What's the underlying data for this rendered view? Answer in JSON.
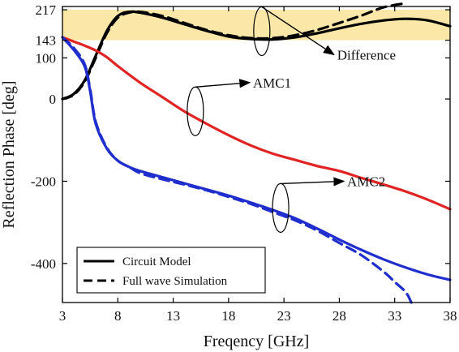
{
  "chart_data": {
    "type": "line",
    "xlabel": "Freqency [GHz]",
    "ylabel": "Reflection Phase [deg]",
    "xlim": [
      3,
      38
    ],
    "ylim": [
      -495,
      225
    ],
    "xticks": [
      3,
      8,
      13,
      18,
      23,
      28,
      33,
      38
    ],
    "xtick_labels": [
      "3",
      "8",
      "13",
      "18",
      "23",
      "28",
      "33",
      "38"
    ],
    "yticks": [
      217,
      143,
      100,
      0,
      -200,
      -400
    ],
    "ytick_labels": [
      "217",
      "143",
      "100",
      "0",
      "-200",
      "-400"
    ],
    "grid": false,
    "highlight_band": {
      "y_from": 143,
      "y_to": 217,
      "color": "#fbe7a8"
    },
    "legend": {
      "position": "bottom-left",
      "entries": [
        {
          "label": "Circuit Model",
          "style": "solid"
        },
        {
          "label": "Full wave Simulation",
          "style": "dashed"
        }
      ]
    },
    "annotations": [
      {
        "text": "Difference",
        "series": "Difference"
      },
      {
        "text": "AMC1",
        "series": "AMC1"
      },
      {
        "text": "AMC2",
        "series": "AMC2"
      }
    ],
    "series": [
      {
        "name": "Difference",
        "model": "circuit",
        "color": "#000000",
        "dash": false,
        "x": [
          3,
          4,
          5,
          6,
          7,
          8,
          9,
          10,
          12,
          14,
          16,
          18,
          20,
          22,
          24,
          26,
          28,
          30,
          32,
          34,
          36,
          38
        ],
        "y": [
          0,
          12,
          45,
          105,
          165,
          202,
          212,
          210,
          198,
          182,
          166,
          152,
          146,
          145,
          150,
          160,
          172,
          183,
          191,
          195,
          191,
          177
        ]
      },
      {
        "name": "Difference",
        "model": "full-wave",
        "color": "#000000",
        "dash": true,
        "x": [
          3,
          4,
          5,
          6,
          7,
          8,
          9,
          10,
          12,
          14,
          16,
          18,
          20,
          22,
          24,
          26,
          28,
          30,
          32,
          34
        ],
        "y": [
          0,
          10,
          42,
          100,
          160,
          198,
          210,
          212,
          202,
          185,
          168,
          155,
          148,
          148,
          155,
          168,
          185,
          203,
          223,
          240
        ]
      },
      {
        "name": "AMC1",
        "model": "circuit",
        "color": "#e02424",
        "dash": false,
        "x": [
          3,
          4,
          5,
          6,
          7,
          8,
          10,
          12,
          14,
          16,
          18,
          20,
          22,
          24,
          26,
          28,
          30,
          32,
          34,
          36,
          38
        ],
        "y": [
          150,
          140,
          130,
          118,
          102,
          80,
          40,
          5,
          -30,
          -60,
          -88,
          -113,
          -133,
          -148,
          -163,
          -175,
          -192,
          -208,
          -225,
          -245,
          -268
        ]
      },
      {
        "name": "AMC2",
        "model": "circuit",
        "color": "#1f2ecc",
        "dash": false,
        "x": [
          3,
          4,
          5,
          5.5,
          6,
          7,
          8,
          9,
          10,
          12,
          14,
          16,
          18,
          20,
          22,
          24,
          26,
          28,
          30,
          32,
          34,
          36,
          38
        ],
        "y": [
          150,
          120,
          80,
          20,
          -60,
          -120,
          -150,
          -165,
          -175,
          -190,
          -205,
          -220,
          -235,
          -252,
          -270,
          -290,
          -315,
          -342,
          -367,
          -390,
          -410,
          -427,
          -440
        ]
      },
      {
        "name": "AMC2",
        "model": "full-wave",
        "color": "#1f2ecc",
        "dash": true,
        "x": [
          3,
          4,
          5,
          5.5,
          6,
          7,
          8,
          9,
          10,
          12,
          14,
          16,
          18,
          20,
          22,
          24,
          26,
          28,
          30,
          32,
          33,
          34,
          34.5
        ],
        "y": [
          150,
          125,
          85,
          25,
          -55,
          -118,
          -150,
          -165,
          -180,
          -195,
          -208,
          -222,
          -238,
          -255,
          -275,
          -295,
          -320,
          -350,
          -380,
          -420,
          -445,
          -470,
          -495
        ]
      }
    ]
  }
}
